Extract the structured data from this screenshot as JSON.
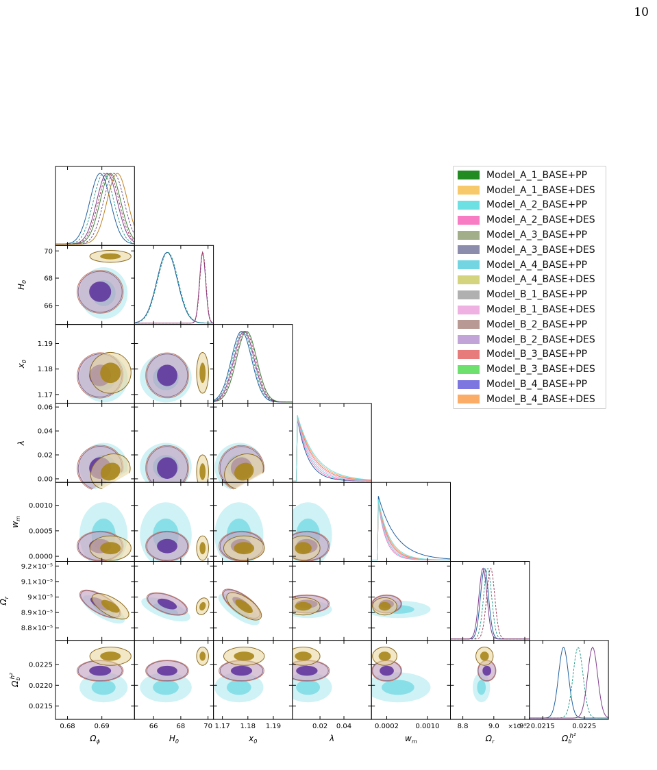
{
  "page_number": "10",
  "chart_data": {
    "type": "corner",
    "parameters": [
      "Ω_φ",
      "H_0",
      "x_0",
      "λ",
      "w_m",
      "Ω_r",
      "Ω_b h^2"
    ],
    "axis_labels": [
      {
        "main": "Ω",
        "sub": "ϕ",
        "sup": ""
      },
      {
        "main": "H",
        "sub": "0",
        "sup": ""
      },
      {
        "main": "x",
        "sub": "0",
        "sup": ""
      },
      {
        "main": "λ",
        "sub": "",
        "sup": ""
      },
      {
        "main": "w",
        "sub": "m",
        "sup": ""
      },
      {
        "main": "Ω",
        "sub": "r",
        "sup": ""
      },
      {
        "main": "Ω",
        "sub": "b",
        "sup": "h²"
      }
    ],
    "ranges": [
      [
        0.6765,
        0.6995
      ],
      [
        64.6,
        70.4
      ],
      [
        1.1665,
        1.1975
      ],
      [
        -0.003,
        0.063
      ],
      [
        -0.0001,
        0.00145
      ],
      [
        8.72e-05,
        9.23e-05
      ],
      [
        0.02118,
        0.02308
      ]
    ],
    "x_ticks": [
      [
        {
          "v": 0.68,
          "t": "0.68"
        },
        {
          "v": 0.69,
          "t": "0.69"
        }
      ],
      [
        {
          "v": 66,
          "t": "66"
        },
        {
          "v": 68,
          "t": "68"
        },
        {
          "v": 70,
          "t": "70"
        }
      ],
      [
        {
          "v": 1.17,
          "t": "1.17"
        },
        {
          "v": 1.18,
          "t": "1.18"
        },
        {
          "v": 1.19,
          "t": "1.19"
        }
      ],
      [
        {
          "v": 0.02,
          "t": "0.02"
        },
        {
          "v": 0.04,
          "t": "0.04"
        }
      ],
      [
        {
          "v": 0.0002,
          "t": "0.0002"
        },
        {
          "v": 0.001,
          "t": "0.0010"
        }
      ],
      [
        {
          "v": 8.8e-05,
          "t": "8.8"
        },
        {
          "v": 9e-05,
          "t": "9.0"
        },
        {
          "v": 9.2e-05,
          "t": "9.2"
        }
      ],
      [
        {
          "v": 0.0215,
          "t": "0.0215"
        },
        {
          "v": 0.0225,
          "t": "0.0225"
        }
      ]
    ],
    "y_ticks": [
      [],
      [
        {
          "v": 66,
          "t": "66"
        },
        {
          "v": 68,
          "t": "68"
        },
        {
          "v": 70,
          "t": "70"
        }
      ],
      [
        {
          "v": 1.17,
          "t": "1.17"
        },
        {
          "v": 1.18,
          "t": "1.18"
        },
        {
          "v": 1.19,
          "t": "1.19"
        }
      ],
      [
        {
          "v": 0.0,
          "t": "0.00"
        },
        {
          "v": 0.02,
          "t": "0.02"
        },
        {
          "v": 0.04,
          "t": "0.04"
        },
        {
          "v": 0.06,
          "t": "0.06"
        }
      ],
      [
        {
          "v": 0.0,
          "t": "0.0000"
        },
        {
          "v": 0.0005,
          "t": "0.0005"
        },
        {
          "v": 0.001,
          "t": "0.0010"
        }
      ],
      [
        {
          "v": 8.8e-05,
          "t": "8.8×10⁻⁵"
        },
        {
          "v": 8.9e-05,
          "t": "8.9×10⁻⁵"
        },
        {
          "v": 9e-05,
          "t": "9×10⁻⁵"
        },
        {
          "v": 9.1e-05,
          "t": "9.1×10⁻⁵"
        },
        {
          "v": 9.2e-05,
          "t": "9.2×10⁻⁵"
        }
      ],
      [
        {
          "v": 0.0215,
          "t": "0.0215"
        },
        {
          "v": 0.022,
          "t": "0.0220"
        },
        {
          "v": 0.0225,
          "t": "0.0225"
        }
      ]
    ],
    "x_offset_label": "×10⁻⁵",
    "groups": {
      "PP": {
        "mean": [
          0.6895,
          67.0,
          1.1775,
          0.009,
          0.0002,
          8.955e-05,
          0.02235
        ],
        "sd": [
          0.0032,
          0.75,
          0.0042,
          0.009,
          0.00014,
          2.8e-08,
          0.00012
        ],
        "color": "#4b2c91"
      },
      "DES": {
        "mean": [
          0.6925,
          69.6,
          1.1785,
          0.006,
          0.00016,
          8.94e-05,
          0.0227
        ],
        "sd": [
          0.003,
          0.22,
          0.004,
          0.007,
          0.00012,
          2.6e-08,
          0.00011
        ],
        "color": "#a8861a"
      },
      "A2PP": {
        "mean": [
          0.6905,
          66.9,
          1.1765,
          0.01,
          0.00042,
          8.92e-05,
          0.02195
        ],
        "sd": [
          0.0035,
          0.95,
          0.0048,
          0.01,
          0.00032,
          3.2e-08,
          0.00018
        ],
        "color": "#4fd0dc"
      }
    },
    "series": [
      {
        "name": "Model_A_1_BASE+PP",
        "color": "#228b22"
      },
      {
        "name": "Model_A_1_BASE+DES",
        "color": "#f8c96a"
      },
      {
        "name": "Model_A_2_BASE+PP",
        "color": "#6de0e4"
      },
      {
        "name": "Model_A_2_BASE+DES",
        "color": "#f77cc3"
      },
      {
        "name": "Model_A_3_BASE+PP",
        "color": "#a2ad8a"
      },
      {
        "name": "Model_A_3_BASE+DES",
        "color": "#8c8cad"
      },
      {
        "name": "Model_A_4_BASE+PP",
        "color": "#74d5e2"
      },
      {
        "name": "Model_A_4_BASE+DES",
        "color": "#d4d47e"
      },
      {
        "name": "Model_B_1_BASE+PP",
        "color": "#b0b0b0"
      },
      {
        "name": "Model_B_1_BASE+DES",
        "color": "#efb1e2"
      },
      {
        "name": "Model_B_2_BASE+PP",
        "color": "#b89993"
      },
      {
        "name": "Model_B_2_BASE+DES",
        "color": "#c2a4d9"
      },
      {
        "name": "Model_B_3_BASE+PP",
        "color": "#e77b7c"
      },
      {
        "name": "Model_B_3_BASE+DES",
        "color": "#6ee06e"
      },
      {
        "name": "Model_B_4_BASE+PP",
        "color": "#7d76e0"
      },
      {
        "name": "Model_B_4_BASE+DES",
        "color": "#fbac66"
      }
    ],
    "legend_position": "top-right",
    "grid": false
  }
}
